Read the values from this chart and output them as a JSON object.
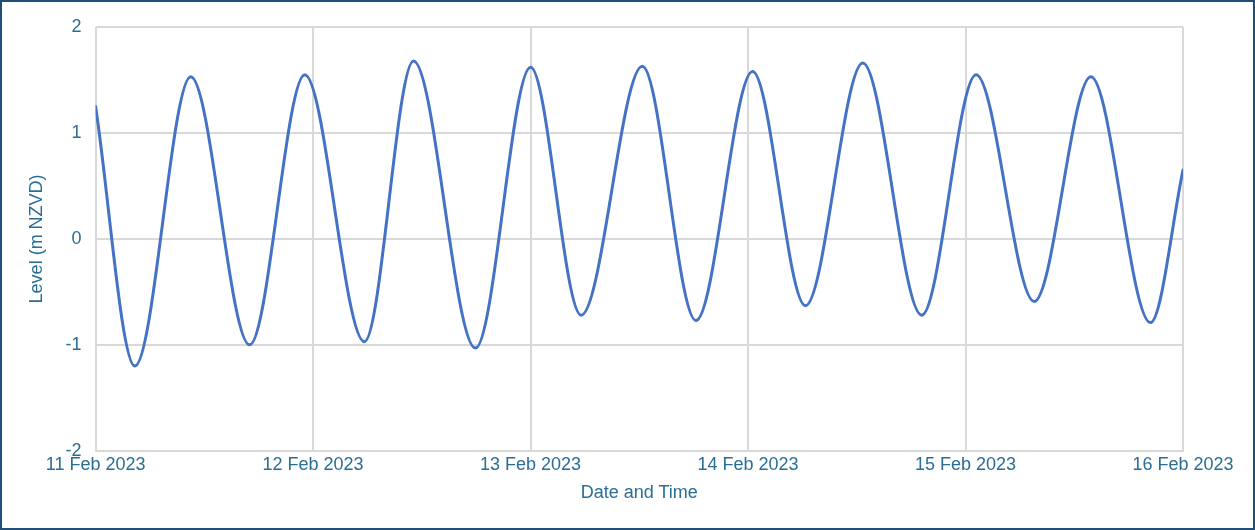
{
  "chart_data": {
    "type": "line",
    "xlabel": "Date and Time",
    "ylabel": "Level (m NZVD)",
    "x": [
      "2023-02-11T00:00",
      "2023-02-11T04:20",
      "2023-02-11T10:30",
      "2023-02-11T17:00",
      "2023-02-11T23:05",
      "2023-02-12T05:40",
      "2023-02-12T11:05",
      "2023-02-12T17:55",
      "2023-02-13T00:00",
      "2023-02-13T05:35",
      "2023-02-13T12:20",
      "2023-02-13T18:15",
      "2023-02-14T00:30",
      "2023-02-14T06:20",
      "2023-02-14T12:40",
      "2023-02-14T19:10",
      "2023-02-15T01:10",
      "2023-02-15T07:35",
      "2023-02-15T13:50",
      "2023-02-15T20:25",
      "2023-02-16T00:00"
    ],
    "series": [
      {
        "color": "#4472c4",
        "values": [
          1.25,
          -1.2,
          1.53,
          -1.0,
          1.55,
          -0.97,
          1.68,
          -1.03,
          1.62,
          -0.72,
          1.63,
          -0.77,
          1.58,
          -0.63,
          1.66,
          -0.72,
          1.55,
          -0.59,
          1.53,
          -0.79,
          0.65
        ]
      }
    ],
    "xlim": [
      "2023-02-11",
      "2023-02-16"
    ],
    "xticks": [
      {
        "value": "2023-02-11",
        "label": "11 Feb 2023"
      },
      {
        "value": "2023-02-12",
        "label": "12 Feb 2023"
      },
      {
        "value": "2023-02-13",
        "label": "13 Feb 2023"
      },
      {
        "value": "2023-02-14",
        "label": "14 Feb 2023"
      },
      {
        "value": "2023-02-15",
        "label": "15 Feb 2023"
      },
      {
        "value": "2023-02-16",
        "label": "16 Feb 2023"
      }
    ],
    "ylim": [
      -2,
      2
    ],
    "yticks": [
      -2,
      -1,
      0,
      1,
      2
    ],
    "grid": true,
    "legend": false,
    "marker": "none",
    "line_style": "solid"
  }
}
